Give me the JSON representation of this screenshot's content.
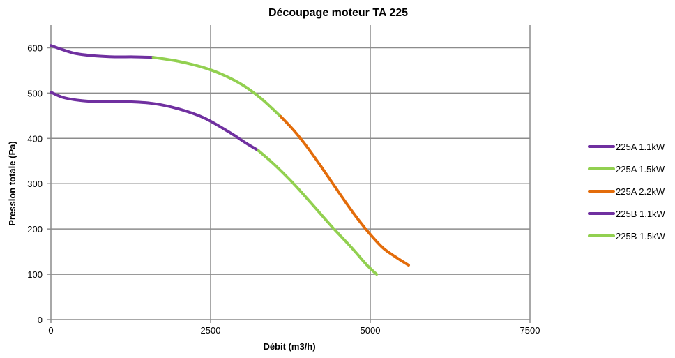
{
  "chart_data": {
    "type": "line",
    "title": "Découpage moteur TA 225",
    "xlabel": "Débit (m3/h)",
    "ylabel": "Pression totale (Pa)",
    "xlim": [
      0,
      7500
    ],
    "ylim": [
      0,
      650
    ],
    "xticks": [
      0,
      2500,
      5000,
      7500
    ],
    "yticks": [
      0,
      100,
      200,
      300,
      400,
      500,
      600
    ],
    "grid": true,
    "legend_position": "right",
    "series": [
      {
        "name": "225A 1.1kW",
        "color": "#7030a0",
        "points": [
          [
            0,
            605
          ],
          [
            200,
            595
          ],
          [
            400,
            587
          ],
          [
            700,
            582
          ],
          [
            1000,
            580
          ],
          [
            1300,
            580
          ],
          [
            1600,
            579
          ]
        ]
      },
      {
        "name": "225A 1.5kW",
        "color": "#92d050",
        "points": [
          [
            1600,
            579
          ],
          [
            2000,
            570
          ],
          [
            2400,
            556
          ],
          [
            2700,
            540
          ],
          [
            3000,
            518
          ],
          [
            3300,
            487
          ],
          [
            3600,
            448
          ]
        ]
      },
      {
        "name": "225A 2.2kW",
        "color": "#e36c0a",
        "points": [
          [
            3600,
            448
          ],
          [
            3800,
            418
          ],
          [
            4000,
            383
          ],
          [
            4200,
            344
          ],
          [
            4400,
            303
          ],
          [
            4600,
            262
          ],
          [
            4800,
            223
          ],
          [
            5000,
            188
          ],
          [
            5200,
            158
          ],
          [
            5400,
            138
          ],
          [
            5600,
            120
          ]
        ]
      },
      {
        "name": "225B 1.1kW",
        "color": "#7030a0",
        "points": [
          [
            0,
            502
          ],
          [
            200,
            490
          ],
          [
            500,
            483
          ],
          [
            800,
            481
          ],
          [
            1200,
            481
          ],
          [
            1600,
            477
          ],
          [
            2000,
            465
          ],
          [
            2400,
            445
          ],
          [
            2800,
            413
          ],
          [
            3050,
            390
          ],
          [
            3250,
            373
          ]
        ]
      },
      {
        "name": "225B 1.5kW",
        "color": "#92d050",
        "points": [
          [
            3250,
            373
          ],
          [
            3500,
            342
          ],
          [
            3800,
            300
          ],
          [
            4100,
            253
          ],
          [
            4400,
            205
          ],
          [
            4700,
            160
          ],
          [
            4950,
            120
          ],
          [
            5100,
            100
          ]
        ]
      }
    ]
  }
}
